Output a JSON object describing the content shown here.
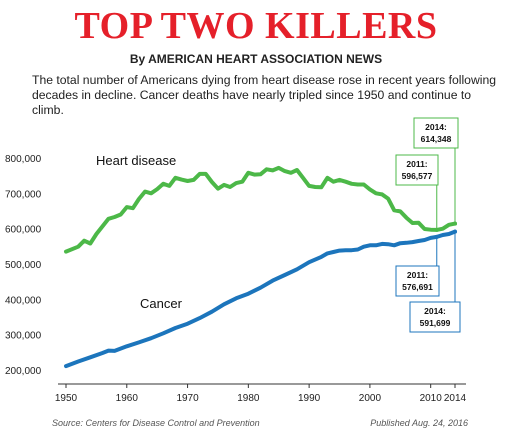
{
  "header": {
    "title": "TOP TWO KILLERS",
    "byline": "By AMERICAN HEART ASSOCIATION NEWS",
    "description": "The total number of Americans dying from heart disease rose in recent years following decades in decline. Cancer deaths have nearly tripled since 1950 and continue to climb."
  },
  "footer": {
    "source": "Source: Centers for Disease Control and Prevention",
    "published": "Published Aug. 24, 2016"
  },
  "colors": {
    "title": "#e5202a",
    "heart": "#4cb848",
    "cancer": "#1c75bc"
  },
  "chart_data": {
    "type": "line",
    "xlim": [
      1950,
      2014
    ],
    "ylim": [
      200000,
      800000
    ],
    "x_ticks": [
      "1950",
      "1960",
      "1970",
      "1980",
      "1990",
      "2000",
      "2010",
      "2014"
    ],
    "x_tick_values": [
      1950,
      1960,
      1970,
      1980,
      1990,
      2000,
      2010,
      2014
    ],
    "y_ticks": [
      "800,000",
      "700,000",
      "600,000",
      "500,000",
      "400,000",
      "300,000",
      "200,000"
    ],
    "y_tick_values": [
      800000,
      700000,
      600000,
      500000,
      400000,
      300000,
      200000
    ],
    "grid": false,
    "series": [
      {
        "name": "Heart disease",
        "color": "#4cb848",
        "points": [
          [
            1950,
            535000
          ],
          [
            1952,
            549000
          ],
          [
            1953,
            566000
          ],
          [
            1954,
            558000
          ],
          [
            1955,
            585000
          ],
          [
            1957,
            628000
          ],
          [
            1958,
            633000
          ],
          [
            1959,
            640000
          ],
          [
            1960,
            661000
          ],
          [
            1961,
            658000
          ],
          [
            1962,
            684000
          ],
          [
            1963,
            705000
          ],
          [
            1964,
            700000
          ],
          [
            1965,
            712000
          ],
          [
            1966,
            727000
          ],
          [
            1967,
            721000
          ],
          [
            1968,
            744000
          ],
          [
            1969,
            739000
          ],
          [
            1970,
            735000
          ],
          [
            1971,
            738000
          ],
          [
            1972,
            755000
          ],
          [
            1973,
            755000
          ],
          [
            1974,
            732000
          ],
          [
            1975,
            713000
          ],
          [
            1976,
            724000
          ],
          [
            1977,
            718000
          ],
          [
            1978,
            729000
          ],
          [
            1979,
            733000
          ],
          [
            1980,
            758000
          ],
          [
            1981,
            753000
          ],
          [
            1982,
            754000
          ],
          [
            1983,
            768000
          ],
          [
            1984,
            765000
          ],
          [
            1985,
            772000
          ],
          [
            1986,
            763000
          ],
          [
            1987,
            758000
          ],
          [
            1988,
            766000
          ],
          [
            1989,
            744000
          ],
          [
            1990,
            721000
          ],
          [
            1991,
            718000
          ],
          [
            1992,
            717000
          ],
          [
            1993,
            744000
          ],
          [
            1994,
            733000
          ],
          [
            1995,
            738000
          ],
          [
            1996,
            733000
          ],
          [
            1997,
            727000
          ],
          [
            1998,
            725000
          ],
          [
            1999,
            725000
          ],
          [
            2000,
            711000
          ],
          [
            2001,
            700000
          ],
          [
            2002,
            697000
          ],
          [
            2003,
            685000
          ],
          [
            2004,
            652000
          ],
          [
            2005,
            649000
          ],
          [
            2006,
            631000
          ],
          [
            2007,
            616000
          ],
          [
            2008,
            617000
          ],
          [
            2009,
            599000
          ],
          [
            2010,
            597000
          ],
          [
            2011,
            596577
          ],
          [
            2012,
            600000
          ],
          [
            2013,
            611000
          ],
          [
            2014,
            614348
          ]
        ]
      },
      {
        "name": "Cancer",
        "color": "#1c75bc",
        "points": [
          [
            1950,
            211000
          ],
          [
            1952,
            224000
          ],
          [
            1954,
            236000
          ],
          [
            1956,
            248000
          ],
          [
            1957,
            255000
          ],
          [
            1958,
            254000
          ],
          [
            1960,
            267000
          ],
          [
            1962,
            278000
          ],
          [
            1964,
            290000
          ],
          [
            1966,
            304000
          ],
          [
            1968,
            319000
          ],
          [
            1970,
            331000
          ],
          [
            1972,
            347000
          ],
          [
            1974,
            365000
          ],
          [
            1976,
            386000
          ],
          [
            1978,
            403000
          ],
          [
            1980,
            416000
          ],
          [
            1982,
            433000
          ],
          [
            1984,
            453000
          ],
          [
            1986,
            469000
          ],
          [
            1988,
            485000
          ],
          [
            1990,
            505000
          ],
          [
            1992,
            520000
          ],
          [
            1993,
            530000
          ],
          [
            1994,
            534000
          ],
          [
            1995,
            538000
          ],
          [
            1996,
            539000
          ],
          [
            1997,
            539000
          ],
          [
            1998,
            541000
          ],
          [
            1999,
            549000
          ],
          [
            2000,
            553000
          ],
          [
            2001,
            553000
          ],
          [
            2002,
            557000
          ],
          [
            2003,
            556000
          ],
          [
            2004,
            553000
          ],
          [
            2005,
            559000
          ],
          [
            2006,
            560000
          ],
          [
            2007,
            562000
          ],
          [
            2008,
            565000
          ],
          [
            2009,
            568000
          ],
          [
            2010,
            574000
          ],
          [
            2011,
            576691
          ],
          [
            2012,
            582000
          ],
          [
            2013,
            585000
          ],
          [
            2014,
            591699
          ]
        ]
      }
    ],
    "annotations": [
      {
        "series": "Heart disease",
        "x": 2011,
        "y": 596577,
        "label": "2011:",
        "value": "596,577"
      },
      {
        "series": "Heart disease",
        "x": 2014,
        "y": 614348,
        "label": "2014:",
        "value": "614,348"
      },
      {
        "series": "Cancer",
        "x": 2011,
        "y": 576691,
        "label": "2011:",
        "value": "576,691"
      },
      {
        "series": "Cancer",
        "x": 2014,
        "y": 591699,
        "label": "2014:",
        "value": "591,699"
      }
    ]
  }
}
